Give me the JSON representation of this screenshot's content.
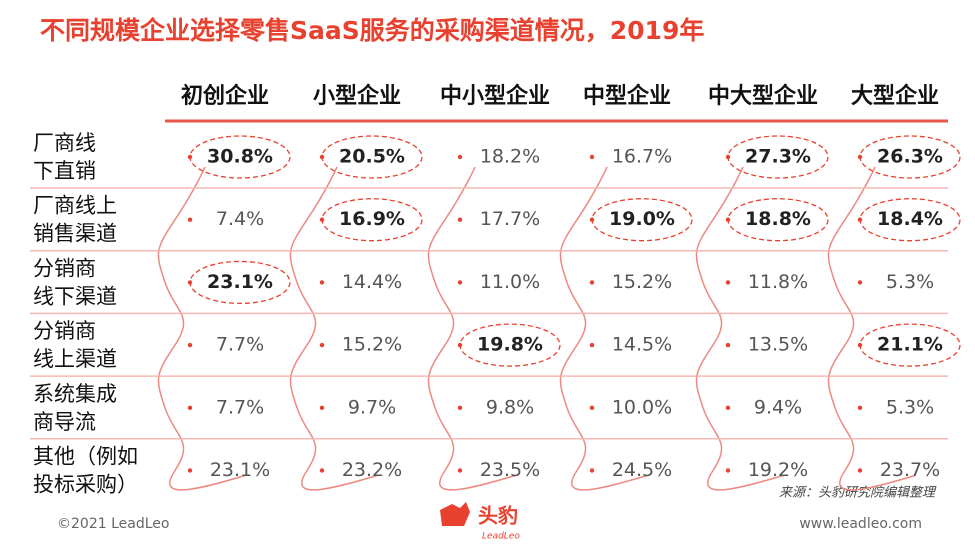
{
  "header": {
    "title": "不同规模企业选择零售SaaS服务的采购渠道情况，2019年"
  },
  "table": {
    "columns": [
      "初创企业",
      "小型企业",
      "中小型企业",
      "中型企业",
      "中大型企业",
      "大型企业"
    ],
    "rows": [
      {
        "label": [
          "厂商线",
          "下直销"
        ],
        "cells": [
          "30.8%",
          "20.5%",
          "18.2%",
          "16.7%",
          "27.3%",
          "26.3%"
        ],
        "highlight": [
          0,
          1,
          4,
          5
        ]
      },
      {
        "label": [
          "厂商线上",
          "销售渠道"
        ],
        "cells": [
          "7.4%",
          "16.9%",
          "17.7%",
          "19.0%",
          "18.8%",
          "18.4%"
        ],
        "highlight": [
          1,
          3,
          4,
          5
        ]
      },
      {
        "label": [
          "分销商",
          "线下渠道"
        ],
        "cells": [
          "23.1%",
          "14.4%",
          "11.0%",
          "15.2%",
          "11.8%",
          "5.3%"
        ],
        "highlight": [
          0
        ]
      },
      {
        "label": [
          "分销商",
          "线上渠道"
        ],
        "cells": [
          "7.7%",
          "15.2%",
          "19.8%",
          "14.5%",
          "13.5%",
          "21.1%"
        ],
        "highlight": [
          2,
          5
        ]
      },
      {
        "label": [
          "系统集成",
          "商导流"
        ],
        "cells": [
          "7.7%",
          "9.7%",
          "9.8%",
          "10.0%",
          "9.4%",
          "5.3%"
        ],
        "highlight": []
      },
      {
        "label": [
          "其他（例如",
          "投标采购）"
        ],
        "cells": [
          "23.1%",
          "23.2%",
          "23.5%",
          "24.5%",
          "19.2%",
          "23.7%"
        ],
        "highlight": []
      }
    ]
  },
  "source": "来源：头豹研究院编辑整理",
  "footer": {
    "copyright": "©2021 LeadLeo",
    "logo": "头豹",
    "logo_sub": "LeadLeo",
    "website": "www.leadleo.com"
  }
}
